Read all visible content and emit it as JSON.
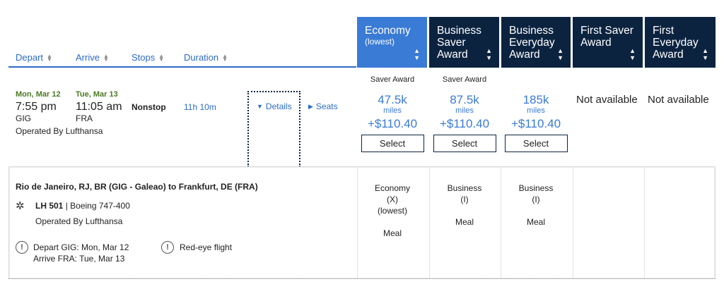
{
  "sort_columns": [
    {
      "label": "Depart"
    },
    {
      "label": "Arrive"
    },
    {
      "label": "Stops"
    },
    {
      "label": "Duration"
    }
  ],
  "fare_columns": [
    {
      "name": "Economy",
      "sub": "(lowest)",
      "active": true
    },
    {
      "name": "Business Saver Award",
      "sub": "",
      "active": false
    },
    {
      "name": "Business Everyday Award",
      "sub": "",
      "active": false
    },
    {
      "name": "First Saver Award",
      "sub": "",
      "active": false
    },
    {
      "name": "First Everyday Award",
      "sub": "",
      "active": false
    }
  ],
  "flight": {
    "depart_date": "Mon, Mar 12",
    "depart_time": "7:55 pm",
    "depart_code": "GIG",
    "arrive_date": "Tue, Mar 13",
    "arrive_time": "11:05 am",
    "arrive_code": "FRA",
    "stops": "Nonstop",
    "duration": "11h 10m",
    "operated_by": "Operated By Lufthansa",
    "details_label": "Details",
    "seats_label": "Seats"
  },
  "fares": [
    {
      "label": "Saver Award",
      "miles": "47.5k",
      "unit": "miles",
      "tax": "+$110.40",
      "button": "Select"
    },
    {
      "label": "Saver Award",
      "miles": "87.5k",
      "unit": "miles",
      "tax": "+$110.40",
      "button": "Select"
    },
    {
      "label": "",
      "miles": "185k",
      "unit": "miles",
      "tax": "+$110.40",
      "button": "Select"
    },
    {
      "not_available": "Not available"
    },
    {
      "not_available": "Not available"
    }
  ],
  "details": {
    "route": "Rio de Janeiro, RJ, BR (GIG - Galeao) to Frankfurt, DE (FRA)",
    "flight_number": "LH 501",
    "separator": " | ",
    "aircraft": "Boeing 747-400",
    "operated_by": "Operated By Lufthansa",
    "depart_note": "Depart GIG: Mon, Mar 12",
    "arrive_note": "Arrive FRA: Tue, Mar 13",
    "redeye": "Red-eye flight",
    "info_glyph": "!",
    "cabins": [
      {
        "name": "Economy",
        "code": "(X)",
        "extra": "(lowest)",
        "meal": "Meal"
      },
      {
        "name": "Business",
        "code": "(I)",
        "extra": "",
        "meal": "Meal"
      },
      {
        "name": "Business",
        "code": "(I)",
        "extra": "",
        "meal": "Meal"
      }
    ]
  },
  "icons": {
    "sort": "sort-arrows-icon",
    "chevron": "chevron-down-icon",
    "star": "star-alliance-icon",
    "info": "info-icon"
  },
  "colors": {
    "navy": "#0c2340",
    "active_blue": "#3a7bd5",
    "link_blue": "#2b6cc4",
    "date_green": "#4a7a24"
  }
}
